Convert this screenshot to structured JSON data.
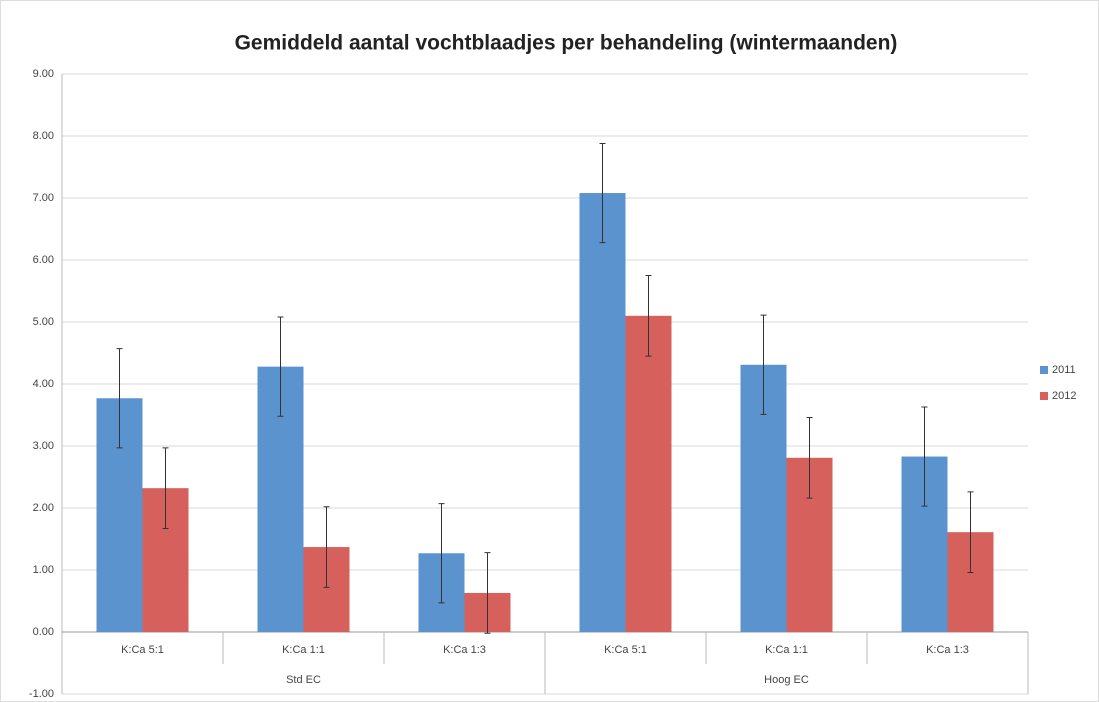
{
  "chart_data": {
    "type": "bar",
    "title": "Gemiddeld aantal vochtblaadjes per behandeling (wintermaanden)",
    "groups": [
      {
        "label": "Std EC",
        "categories": [
          "K:Ca 5:1",
          "K:Ca 1:1",
          "K:Ca 1:3"
        ]
      },
      {
        "label": "Hoog EC",
        "categories": [
          "K:Ca 5:1",
          "K:Ca 1:1",
          "K:Ca 1:3"
        ]
      }
    ],
    "series": [
      {
        "name": "2011",
        "color": "#5b93cf",
        "values": [
          3.77,
          4.28,
          1.27,
          7.08,
          4.31,
          2.83
        ],
        "errors": [
          0.8,
          0.8,
          0.8,
          0.8,
          0.8,
          0.8
        ]
      },
      {
        "name": "2012",
        "color": "#d6615c",
        "values": [
          2.32,
          1.37,
          0.63,
          5.1,
          2.81,
          1.61
        ],
        "errors": [
          0.65,
          0.65,
          0.65,
          0.65,
          0.65,
          0.65
        ]
      }
    ],
    "ylim": [
      -1,
      9
    ],
    "yticks": [
      {
        "value": -1,
        "label": "-1.00"
      },
      {
        "value": 0,
        "label": "0.00"
      },
      {
        "value": 1,
        "label": "1.00"
      },
      {
        "value": 2,
        "label": "2.00"
      },
      {
        "value": 3,
        "label": "3.00"
      },
      {
        "value": 4,
        "label": "4.00"
      },
      {
        "value": 5,
        "label": "5.00"
      },
      {
        "value": 6,
        "label": "6.00"
      },
      {
        "value": 7,
        "label": "7.00"
      },
      {
        "value": 8,
        "label": "8.00"
      },
      {
        "value": 9,
        "label": "9.00"
      }
    ],
    "grid": true,
    "legend": "right"
  }
}
